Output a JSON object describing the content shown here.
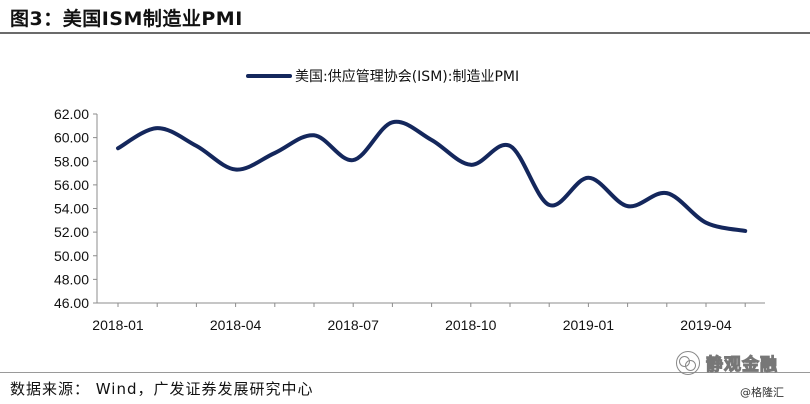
{
  "figure": {
    "title": "图3：美国ISM制造业PMI",
    "source": "数据来源：   Wind，广发证券发展研究中心",
    "watermark": "静观金融",
    "watermark_sub": "@格隆汇",
    "line_color": "#14275c"
  },
  "chart_data": {
    "type": "line",
    "title": "",
    "xlabel": "",
    "ylabel": "",
    "ylim": [
      46,
      62
    ],
    "yticks": [
      "46.00",
      "48.00",
      "50.00",
      "52.00",
      "54.00",
      "56.00",
      "58.00",
      "60.00",
      "62.00"
    ],
    "xticks": [
      "2018-01",
      "2018-04",
      "2018-07",
      "2018-10",
      "2019-01",
      "2019-04"
    ],
    "legend": "top-center",
    "grid": false,
    "x": [
      "2018-01",
      "2018-02",
      "2018-03",
      "2018-04",
      "2018-05",
      "2018-06",
      "2018-07",
      "2018-08",
      "2018-09",
      "2018-10",
      "2018-11",
      "2018-12",
      "2019-01",
      "2019-02",
      "2019-03",
      "2019-04",
      "2019-05"
    ],
    "series": [
      {
        "name": "美国:供应管理协会(ISM):制造业PMI",
        "values": [
          59.1,
          60.8,
          59.3,
          57.3,
          58.7,
          60.2,
          58.1,
          61.3,
          59.8,
          57.7,
          59.3,
          54.3,
          56.6,
          54.2,
          55.3,
          52.8,
          52.1
        ]
      }
    ]
  }
}
